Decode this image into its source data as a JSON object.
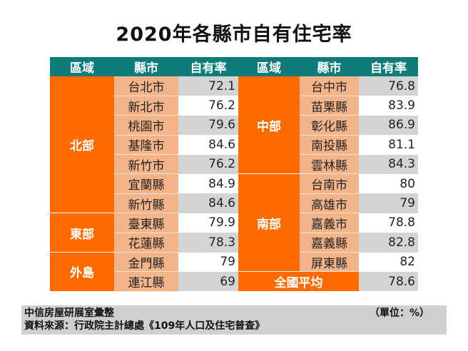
{
  "title": "2020年各縣市自有住宅率",
  "headers": [
    "區域",
    "縣市",
    "自有率",
    "區域",
    "縣市",
    "自有率"
  ],
  "left": [
    {
      "region": "北部",
      "span": 7,
      "rows": [
        [
          "台北市",
          "72.1"
        ],
        [
          "新北市",
          "76.2"
        ],
        [
          "桃園市",
          "79.6"
        ],
        [
          "基隆市",
          "84.6"
        ],
        [
          "新竹市",
          "76.2"
        ],
        [
          "宜蘭縣",
          "84.9"
        ],
        [
          "新竹縣",
          "84.6"
        ]
      ]
    },
    {
      "region": "東部",
      "span": 2,
      "rows": [
        [
          "臺東縣",
          "79.9"
        ],
        [
          "花蓮縣",
          "78.3"
        ]
      ]
    },
    {
      "region": "外島",
      "span": 2,
      "rows": [
        [
          "金門縣",
          "79"
        ],
        [
          "連江縣",
          "69"
        ]
      ]
    }
  ],
  "right": [
    {
      "region": "中部",
      "span": 5,
      "rows": [
        [
          "台中市",
          "76.8"
        ],
        [
          "苗栗縣",
          "83.9"
        ],
        [
          "彰化縣",
          "86.9"
        ],
        [
          "南投縣",
          "81.1"
        ],
        [
          "雲林縣",
          "84.3"
        ]
      ]
    },
    {
      "region": "南部",
      "span": 5,
      "rows": [
        [
          "台南市",
          "80"
        ],
        [
          "高雄市",
          "79"
        ],
        [
          "嘉義市",
          "78.8"
        ],
        [
          "嘉義縣",
          "82.8"
        ],
        [
          "屏東縣",
          "82"
        ]
      ]
    }
  ],
  "national": {
    "label": "全國平均",
    "value": "78.6"
  },
  "footer": {
    "compiler": "中信房屋研展室彙整",
    "unit": "（單位：%）",
    "source": "資料來源：行政院主計總處《109年人口及住宅普查》"
  },
  "colors": {
    "header": "#0e7c7b",
    "region": "#ff6a00",
    "city": "#f4b48a",
    "stripe": "#d4d4d4"
  }
}
